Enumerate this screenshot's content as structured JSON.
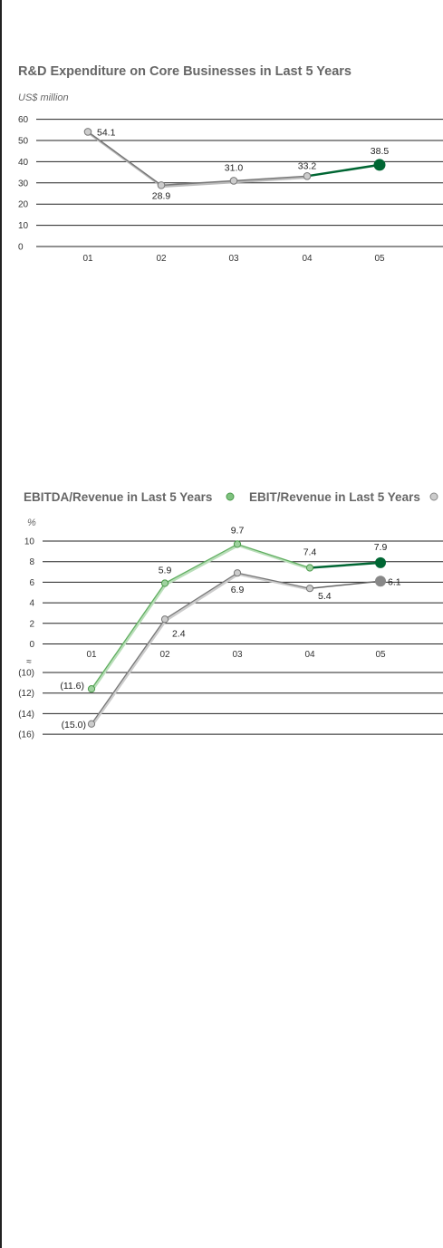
{
  "chart_data": [
    {
      "type": "line",
      "title": "R&D Expenditure on Core Businesses in Last 5 Years",
      "unit": "US$ million",
      "categories": [
        "01",
        "02",
        "03",
        "04",
        "05"
      ],
      "yticks": [
        "60",
        "50",
        "40",
        "30",
        "20",
        "10",
        "0"
      ],
      "ylim": [
        0,
        60
      ],
      "series": [
        {
          "values": [
            54.1,
            28.9,
            31.0,
            33.2,
            38.5
          ],
          "labels": [
            "54.1",
            "28.9",
            "31.0",
            "33.2",
            "38.5"
          ],
          "color": "#999999",
          "highlight_color": "#006633"
        }
      ],
      "grid": true
    },
    {
      "type": "line",
      "unit": "%",
      "categories": [
        "01",
        "02",
        "03",
        "04",
        "05"
      ],
      "yticks": [
        "10",
        "8",
        "6",
        "4",
        "2",
        "0",
        "(10)",
        "(12)",
        "(14)",
        "(16)"
      ],
      "ylim": [
        -16,
        10
      ],
      "axis_break_symbol": "≈",
      "series": [
        {
          "name": "EBITDA/Revenue in Last 5 Years",
          "values": [
            -11.6,
            5.9,
            9.7,
            7.4,
            7.9
          ],
          "labels": [
            "(11.6)",
            "5.9",
            "9.7",
            "7.4",
            "7.9"
          ],
          "color": "#7fc27f",
          "highlight_color": "#006633"
        },
        {
          "name": "EBIT/Revenue in Last 5 Years",
          "values": [
            -15.0,
            2.4,
            6.9,
            5.4,
            6.1
          ],
          "labels": [
            "(15.0)",
            "2.4",
            "6.9",
            "5.4",
            "6.1"
          ],
          "color": "#999999",
          "highlight_color": "#888888"
        }
      ],
      "grid": true
    }
  ]
}
